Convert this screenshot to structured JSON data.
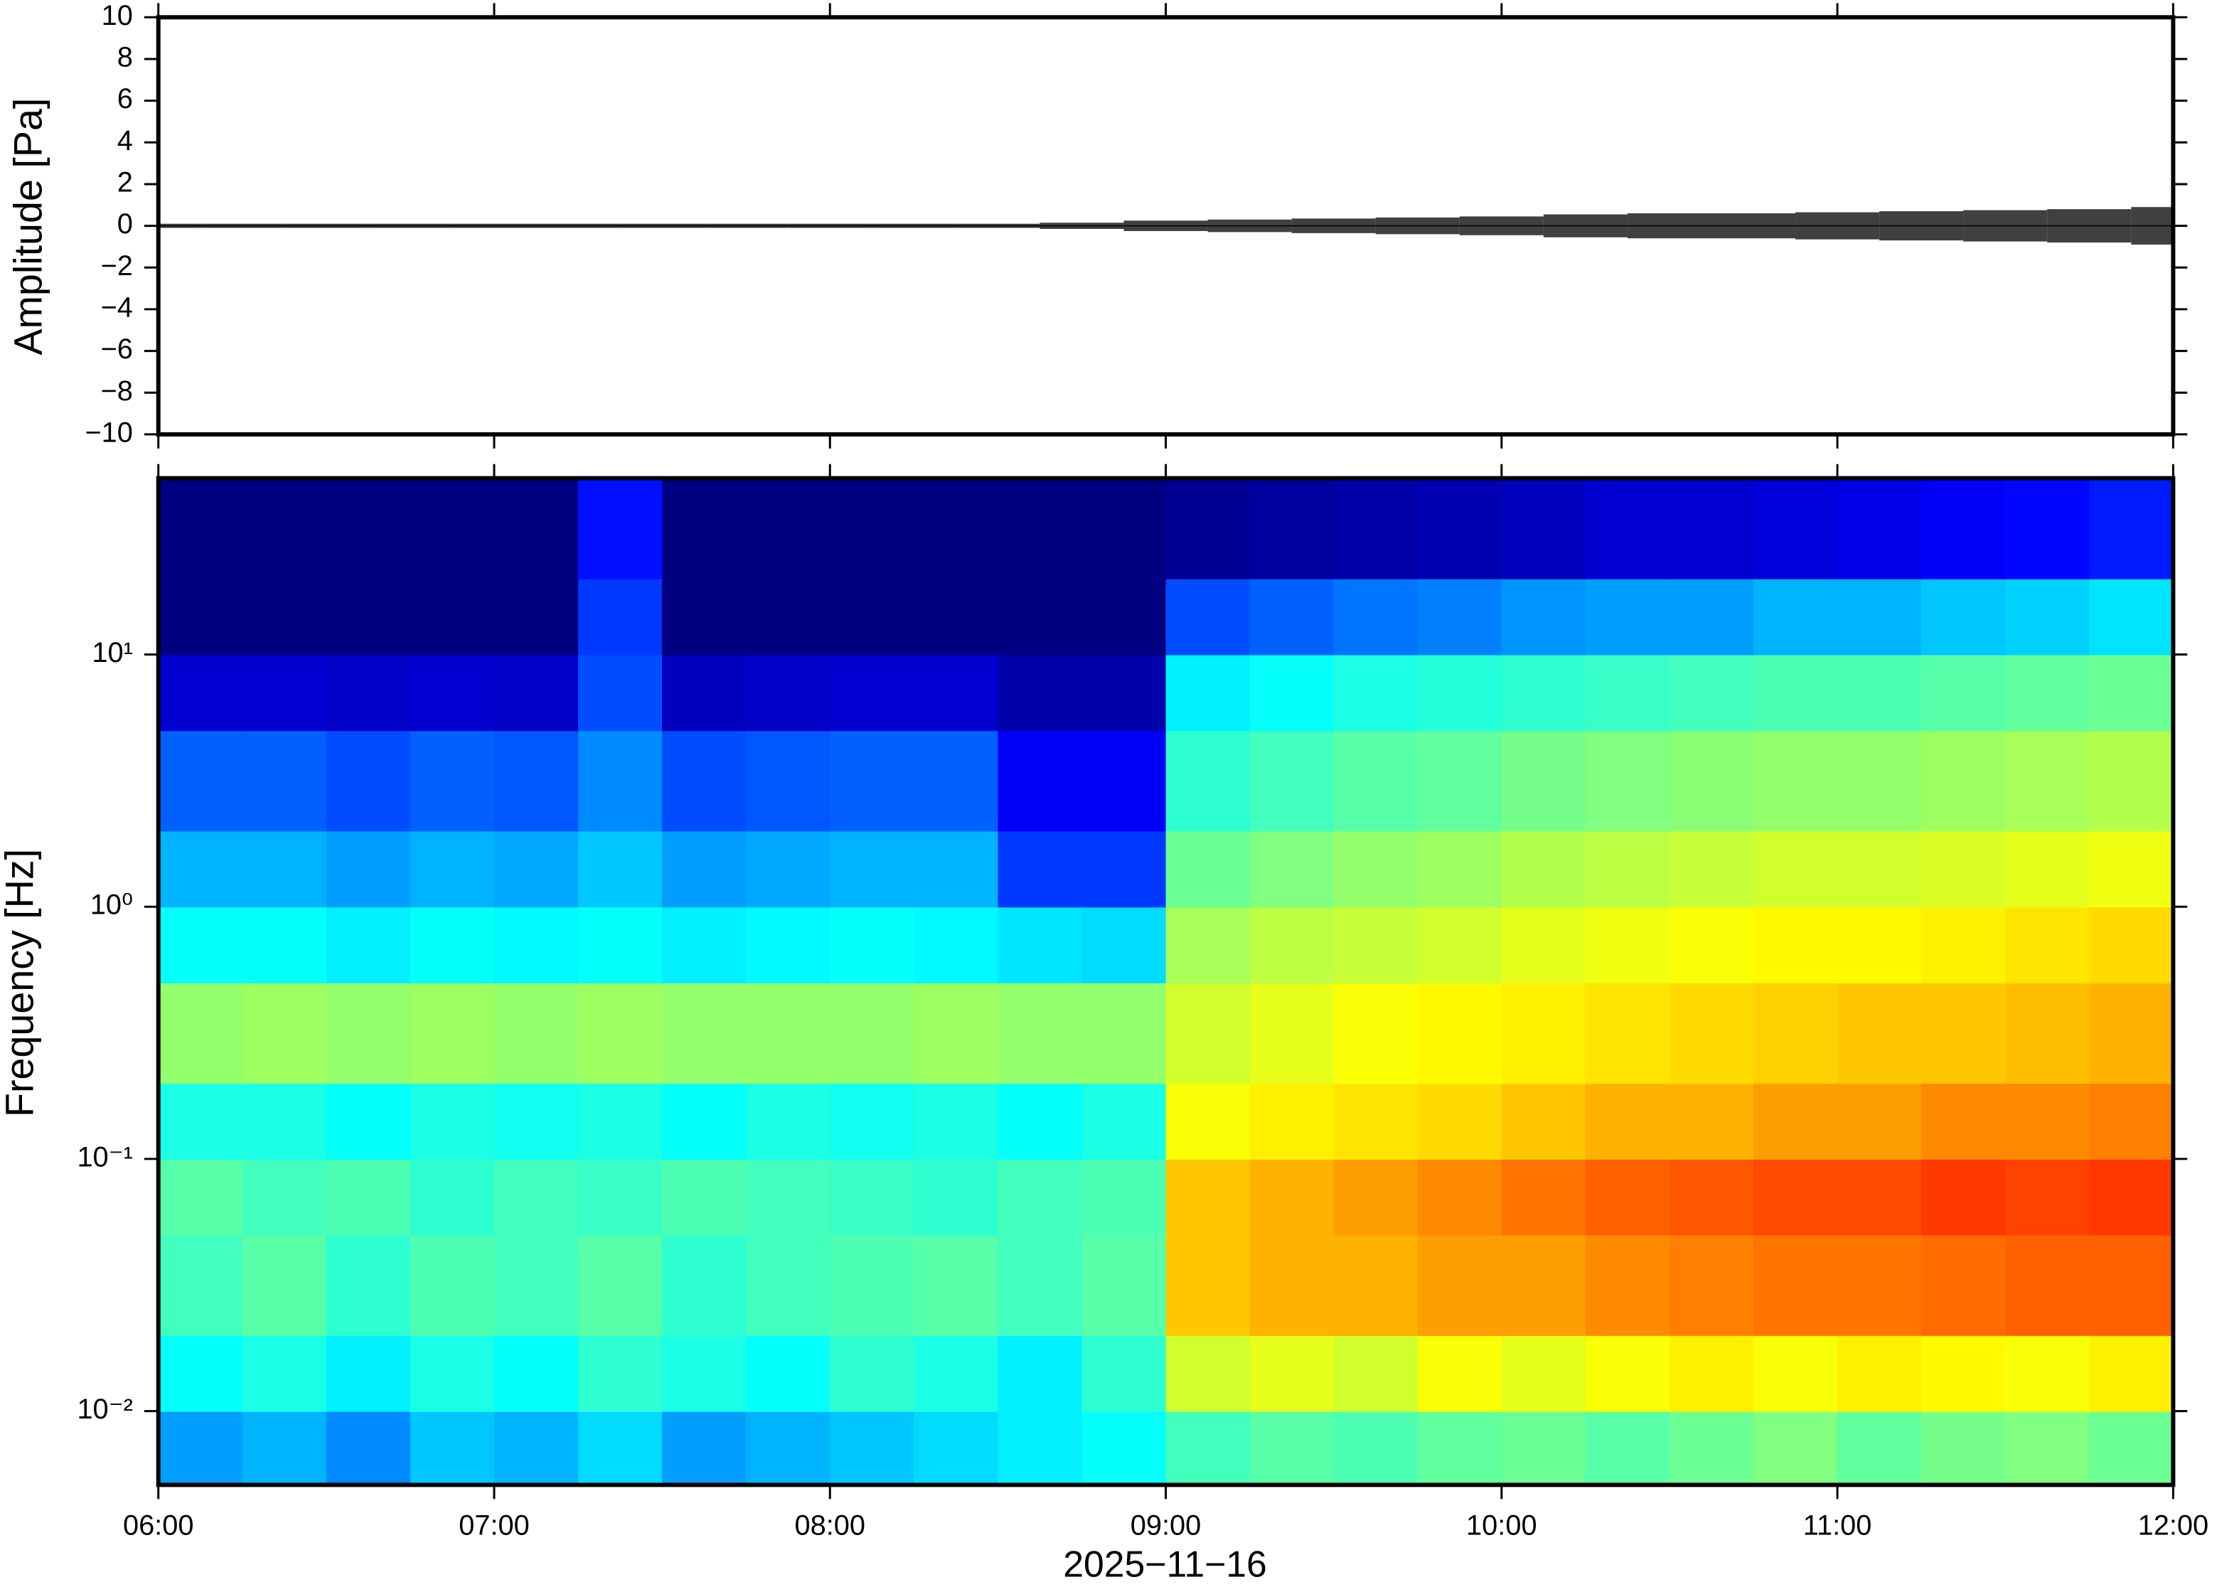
{
  "chart_data": [
    {
      "type": "waveform",
      "ylabel": "Amplitude [Pa]",
      "color": "#000000",
      "x": [
        6.0,
        6.25,
        6.5,
        6.75,
        7.0,
        7.25,
        7.5,
        7.75,
        8.0,
        8.25,
        8.5,
        8.75,
        9.0,
        9.25,
        9.5,
        9.75,
        10.0,
        10.25,
        10.5,
        10.75,
        11.0,
        11.25,
        11.5,
        11.75,
        12.0
      ],
      "values": [
        0.1,
        0.1,
        0.1,
        0.1,
        0.1,
        0.1,
        0.1,
        0.1,
        0.1,
        0.1,
        0.1,
        0.15,
        0.25,
        0.3,
        0.35,
        0.4,
        0.45,
        0.55,
        0.6,
        0.6,
        0.65,
        0.7,
        0.75,
        0.8,
        0.9
      ],
      "xlim": [
        6,
        12
      ],
      "ylim": [
        -10,
        10
      ],
      "yticks": [
        {
          "value": -10,
          "label": "−10"
        },
        {
          "value": -8,
          "label": "−8"
        },
        {
          "value": -6,
          "label": "−6"
        },
        {
          "value": -4,
          "label": "−4"
        },
        {
          "value": -2,
          "label": "−2"
        },
        0,
        2,
        4,
        6,
        8,
        10
      ]
    },
    {
      "type": "heatmap",
      "ylabel": "Frequency [Hz]",
      "xlabel": "2025−11−16",
      "colormap": "jet",
      "clim": [
        0,
        100
      ],
      "log_y": true,
      "xbins": [
        6.0,
        6.25,
        6.5,
        6.75,
        7.0,
        7.25,
        7.5,
        7.75,
        8.0,
        8.25,
        8.5,
        8.75,
        9.0,
        9.25,
        9.5,
        9.75,
        10.0,
        10.25,
        10.5,
        10.75,
        11.0,
        11.25,
        11.5,
        11.75,
        12.0
      ],
      "ybins": [
        0.0051,
        0.01,
        0.02,
        0.05,
        0.1,
        0.2,
        0.5,
        1,
        2,
        5,
        10,
        20,
        50
      ],
      "z": [
        [
          28,
          30,
          26,
          32,
          30,
          34,
          28,
          30,
          32,
          34,
          36,
          38,
          44,
          46,
          45,
          47,
          48,
          46,
          48,
          50,
          47,
          49,
          50,
          48
        ],
        [
          38,
          40,
          36,
          40,
          38,
          42,
          40,
          38,
          42,
          40,
          36,
          42,
          58,
          60,
          58,
          62,
          60,
          62,
          64,
          62,
          64,
          63,
          62,
          64
        ],
        [
          44,
          46,
          42,
          45,
          44,
          46,
          42,
          44,
          45,
          46,
          44,
          46,
          68,
          70,
          70,
          72,
          72,
          74,
          75,
          76,
          76,
          77,
          78,
          78
        ],
        [
          46,
          44,
          45,
          42,
          44,
          43,
          45,
          44,
          43,
          42,
          44,
          45,
          68,
          70,
          72,
          74,
          76,
          78,
          79,
          80,
          80,
          82,
          81,
          82
        ],
        [
          40,
          40,
          38,
          40,
          39,
          40,
          38,
          40,
          39,
          40,
          38,
          40,
          62,
          64,
          65,
          66,
          68,
          70,
          70,
          72,
          72,
          74,
          74,
          75
        ],
        [
          52,
          53,
          52,
          53,
          52,
          53,
          52,
          52,
          52,
          53,
          52,
          52,
          58,
          60,
          62,
          63,
          64,
          65,
          66,
          67,
          68,
          68,
          69,
          70
        ],
        [
          38,
          38,
          36,
          38,
          37,
          38,
          36,
          37,
          38,
          37,
          35,
          34,
          54,
          56,
          57,
          58,
          60,
          61,
          62,
          63,
          63,
          64,
          65,
          66
        ],
        [
          30,
          30,
          28,
          30,
          29,
          32,
          28,
          29,
          30,
          30,
          18,
          18,
          48,
          50,
          52,
          53,
          55,
          56,
          57,
          58,
          58,
          59,
          60,
          61
        ],
        [
          22,
          22,
          20,
          22,
          21,
          26,
          20,
          21,
          22,
          22,
          12,
          12,
          42,
          44,
          46,
          47,
          49,
          50,
          51,
          52,
          52,
          53,
          54,
          55
        ],
        [
          8,
          8,
          7,
          8,
          7,
          20,
          6,
          7,
          8,
          8,
          4,
          4,
          36,
          38,
          40,
          41,
          42,
          43,
          44,
          45,
          45,
          46,
          47,
          48
        ],
        [
          0,
          0,
          0,
          0,
          0,
          18,
          0,
          0,
          0,
          0,
          0,
          0,
          20,
          22,
          24,
          25,
          27,
          28,
          28,
          30,
          30,
          32,
          33,
          35
        ],
        [
          0,
          0,
          0,
          0,
          0,
          14,
          0,
          0,
          0,
          0,
          0,
          0,
          2,
          3,
          4,
          5,
          6,
          8,
          8,
          9,
          10,
          12,
          13,
          15
        ]
      ],
      "xlim": [
        6,
        12
      ],
      "ylim": [
        0.0051,
        50
      ],
      "xticks": [
        {
          "value": 6,
          "label": "06:00"
        },
        {
          "value": 7,
          "label": "07:00"
        },
        {
          "value": 8,
          "label": "08:00"
        },
        {
          "value": 9,
          "label": "09:00"
        },
        {
          "value": 10,
          "label": "10:00"
        },
        {
          "value": 11,
          "label": "11:00"
        },
        {
          "value": 12,
          "label": "12:00"
        }
      ],
      "yticks": [
        {
          "value": 0.01,
          "label": "10⁻²"
        },
        {
          "value": 0.1,
          "label": "10⁻¹"
        },
        {
          "value": 1,
          "label": "10⁰"
        },
        {
          "value": 10,
          "label": "10¹"
        }
      ]
    }
  ]
}
